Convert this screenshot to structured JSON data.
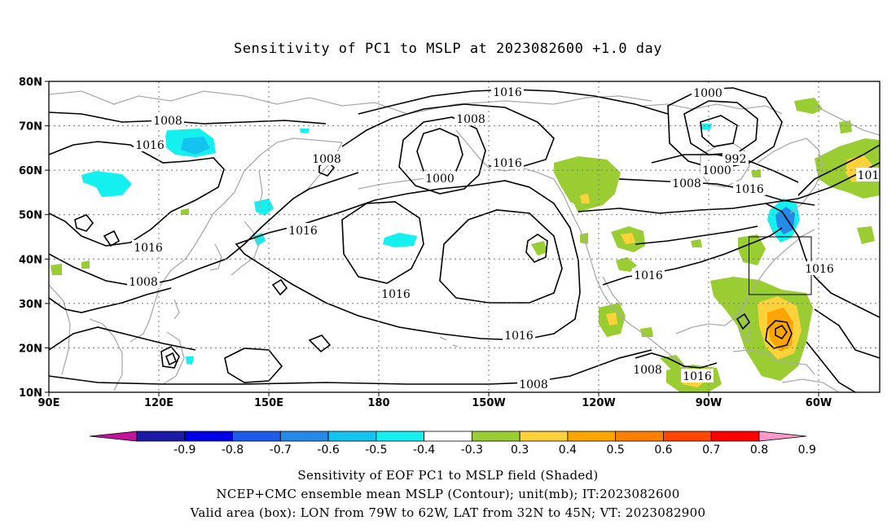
{
  "title": "Sensitivity of PC1 to MSLP at 2023082600 +1.0 day",
  "map": {
    "lat_labels": [
      "80N",
      "70N",
      "60N",
      "50N",
      "40N",
      "30N",
      "20N",
      "10N"
    ],
    "lon_labels": [
      "90E",
      "120E",
      "150E",
      "180",
      "150W",
      "120W",
      "90W",
      "60W"
    ],
    "valid_box": {
      "lon_min": -79,
      "lon_max": -62,
      "lat_min": 32,
      "lat_max": 45
    },
    "contour_labels": [
      "1016",
      "1000",
      "1008",
      "1016",
      "1008",
      "1016",
      "1008",
      "1016",
      "1000",
      "1016",
      "992",
      "1000",
      "1008",
      "1016",
      "1016",
      "1016",
      "1016",
      "1008",
      "1008",
      "1016",
      "1008",
      "1016",
      "101"
    ],
    "colors": {
      "land": "#aaaaaa",
      "contour": "#000000",
      "grid": "#777777"
    }
  },
  "colorbar": {
    "labels": [
      "-0.9",
      "-0.8",
      "-0.7",
      "-0.6",
      "-0.5",
      "-0.4",
      "-0.3",
      "0.3",
      "0.4",
      "0.5",
      "0.6",
      "0.7",
      "0.8",
      "0.9"
    ],
    "colors": [
      "#c0129a",
      "#1a1aa6",
      "#0000e6",
      "#1c5ce8",
      "#2489e8",
      "#14c4f0",
      "#14f0f0",
      "#ffffff",
      "#9acd32",
      "#ffd23c",
      "#ffa500",
      "#ff7f00",
      "#ff4500",
      "#ff0000",
      "#ff99cc"
    ]
  },
  "caption": {
    "line1": "Sensitivity of EOF PC1 to MSLP field (Shaded)",
    "line2": "NCEP+CMC ensemble mean MSLP (Contour); unit(mb); IT:2023082600",
    "line3": "Valid area (box): LON from 79W to 62W, LAT from 32N to 45N; VT: 2023082900"
  }
}
